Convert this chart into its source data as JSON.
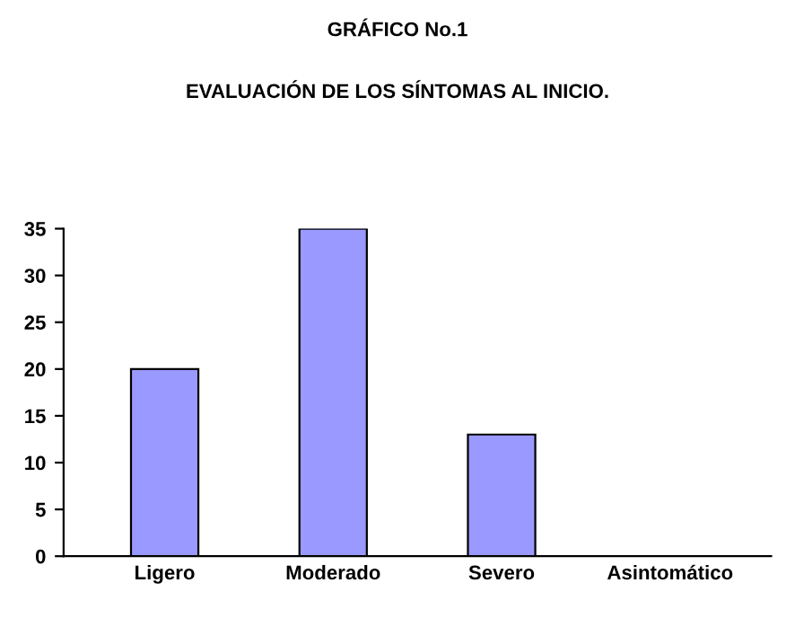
{
  "chart_data": {
    "type": "bar",
    "title": "GRÁFICO No.1",
    "subtitle": "EVALUACIÓN DE LOS SÍNTOMAS AL INICIO.",
    "categories": [
      "Ligero",
      "Moderado",
      "Severo",
      "Asintomático"
    ],
    "values": [
      20,
      35,
      13,
      0
    ],
    "color": "#9999ff",
    "ylim": [
      0,
      35
    ],
    "yticks": [
      0,
      5,
      10,
      15,
      20,
      25,
      30,
      35
    ],
    "grid": false
  }
}
